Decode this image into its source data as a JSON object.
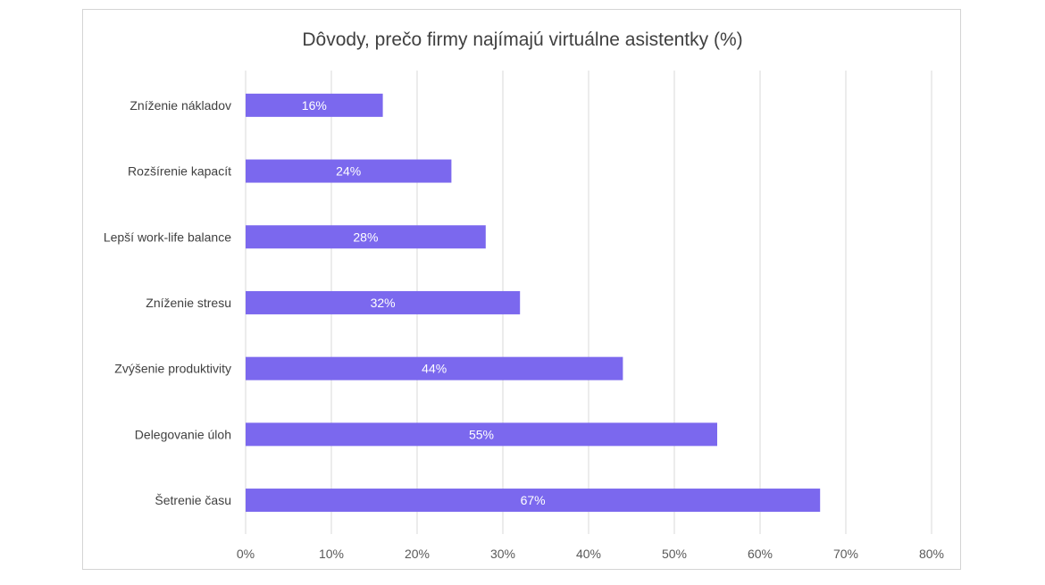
{
  "chart_data": {
    "type": "bar",
    "orientation": "horizontal",
    "title": "Dôvody, prečo firmy najímajú virtuálne asistentky (%)",
    "categories": [
      "Zníženie nákladov",
      "Rozšírenie kapacít",
      "Lepší work-life balance",
      "Zníženie stresu",
      "Zvýšenie produktivity",
      "Delegovanie úloh",
      "Šetrenie času"
    ],
    "values": [
      16,
      24,
      28,
      32,
      44,
      55,
      67
    ],
    "data_labels": [
      "16%",
      "24%",
      "28%",
      "32%",
      "44%",
      "55%",
      "67%"
    ],
    "x_ticks": [
      "0%",
      "10%",
      "20%",
      "30%",
      "40%",
      "50%",
      "60%",
      "70%",
      "80%"
    ],
    "xlim": [
      0,
      80
    ],
    "grid": true,
    "legend": "none",
    "bar_color": "#7b68ee"
  }
}
